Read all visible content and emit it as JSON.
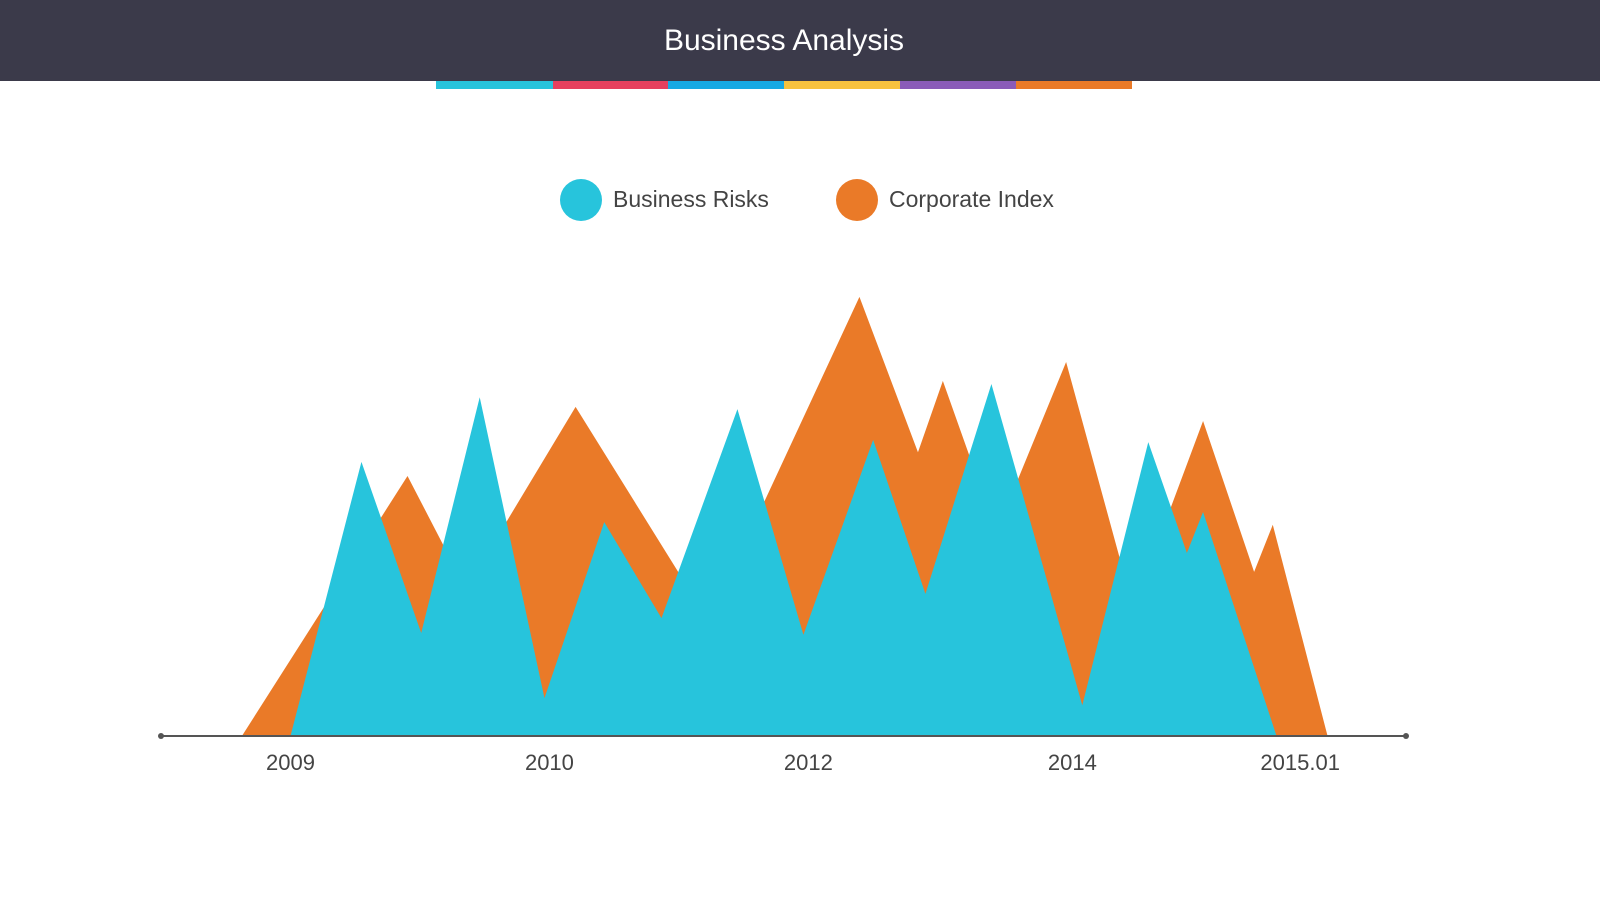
{
  "chart_data": {
    "type": "area",
    "title": "Business Analysis",
    "xlim": [
      0,
      100
    ],
    "xticks": [
      {
        "value": 10.4,
        "label": "2009"
      },
      {
        "value": 31.2,
        "label": "2010"
      },
      {
        "value": 52.0,
        "label": "2012"
      },
      {
        "value": 73.2,
        "label": "2014"
      },
      {
        "value": 91.5,
        "label": "2015.01"
      }
    ],
    "ylim": [
      0,
      100
    ],
    "series": [
      {
        "name": "Corporate Index",
        "color": "#ea7a28",
        "x": [
          6.5,
          19.8,
          24.5,
          33.3,
          44.0,
          56.1,
          60.8,
          62.8,
          67.1,
          72.7,
          78.1,
          83.7,
          87.8,
          89.3,
          93.7
        ],
        "values": [
          0,
          59.1,
          33.4,
          74.8,
          26.1,
          99.8,
          64.5,
          80.7,
          46.4,
          85.0,
          29.1,
          71.6,
          37.3,
          48.0,
          0
        ]
      },
      {
        "name": "Business Risks",
        "color": "#27c4dc",
        "x": [
          10.4,
          16.1,
          20.9,
          25.6,
          30.8,
          35.6,
          40.2,
          46.3,
          51.6,
          57.2,
          61.4,
          66.7,
          74.0,
          79.3,
          82.4,
          83.7,
          89.6
        ],
        "values": [
          0,
          62.3,
          23.4,
          77.0,
          8.6,
          48.6,
          26.8,
          74.3,
          23.0,
          67.3,
          32.3,
          80.0,
          7.0,
          66.8,
          41.6,
          50.9,
          0
        ]
      }
    ],
    "legend_order": [
      1,
      0
    ],
    "watermark": "https://ppt.pkll.de"
  }
}
